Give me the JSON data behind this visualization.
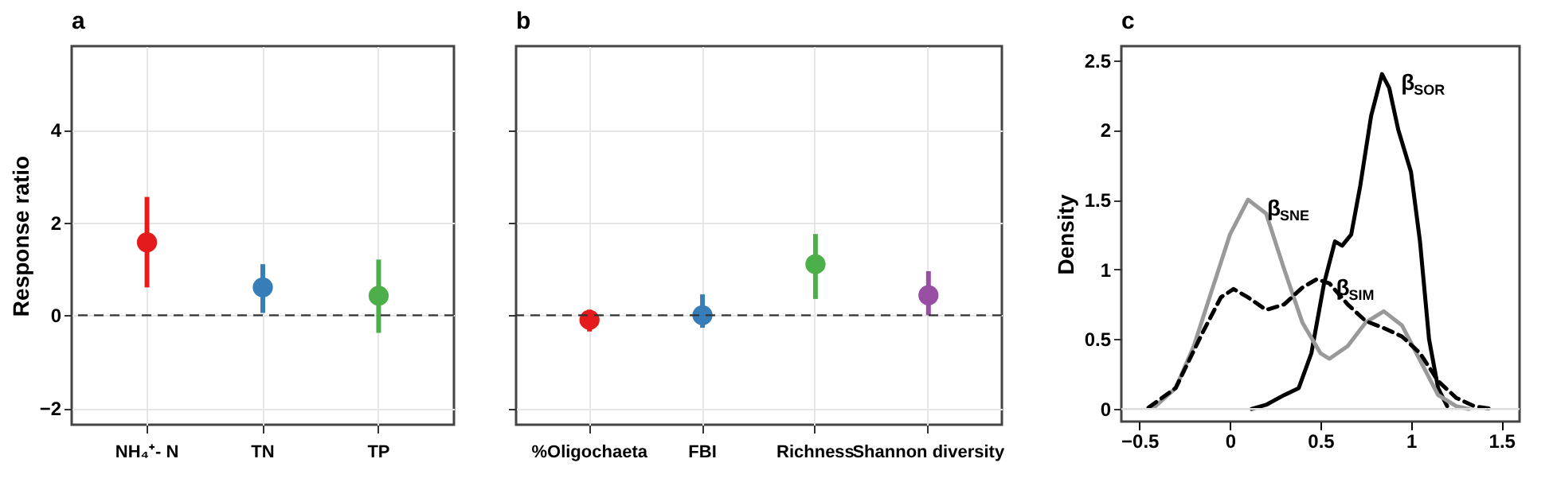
{
  "chart_data": [
    {
      "type": "scatter",
      "title": "a",
      "ylabel": "Response ratio",
      "categories": [
        "NH₄⁺- N",
        "TN",
        "TP"
      ],
      "values": [
        1.57,
        0.6,
        0.42
      ],
      "errors": [
        [
          0.6,
          2.55
        ],
        [
          0.05,
          1.1
        ],
        [
          -0.38,
          1.2
        ]
      ],
      "colors": [
        "#e41a1c",
        "#377eb8",
        "#4daf4a"
      ],
      "ylim": [
        -2.36,
        5.8
      ],
      "yticks": [
        -2,
        0,
        2,
        4
      ],
      "grid": true,
      "legend": false,
      "ref_lines": [
        {
          "axis": "y",
          "value": 0,
          "line_style": "dashed",
          "color": "#333333"
        }
      ]
    },
    {
      "type": "scatter",
      "title": "b",
      "categories": [
        "%Oligochaeta",
        "FBI",
        "Richness",
        "Shannon diversity"
      ],
      "values": [
        -0.1,
        0.0,
        1.1,
        0.43
      ],
      "errors": [
        [
          -0.35,
          0.12
        ],
        [
          -0.27,
          0.45
        ],
        [
          0.35,
          1.75
        ],
        [
          0.0,
          0.95
        ]
      ],
      "colors": [
        "#e41a1c",
        "#377eb8",
        "#4daf4a",
        "#984ea3"
      ],
      "ylim": [
        -2.36,
        5.8
      ],
      "yticks": [
        -2,
        0,
        2,
        4
      ],
      "tick_labels": "x",
      "grid": true,
      "legend": false,
      "ref_lines": [
        {
          "axis": "y",
          "value": 0,
          "line_style": "dashed",
          "color": "#333333"
        }
      ]
    },
    {
      "type": "line",
      "title": "c",
      "ylabel": "Density",
      "xlim": [
        -0.6,
        1.6
      ],
      "xticks": [
        -0.5,
        0,
        0.5,
        1,
        1.5
      ],
      "ylim": [
        -0.09,
        2.6
      ],
      "yticks": [
        0,
        0.5,
        1,
        1.5,
        2,
        2.5
      ],
      "grid": false,
      "series": [
        {
          "name": "β$_{SOR}$",
          "color": "#000000",
          "line_style": "solid",
          "x": [
            0.12,
            0.2,
            0.3,
            0.38,
            0.45,
            0.52,
            0.58,
            0.62,
            0.67,
            0.72,
            0.78,
            0.84,
            0.88,
            0.93,
            1.0,
            1.05,
            1.1,
            1.15,
            1.2
          ],
          "values": [
            0.0,
            0.03,
            0.1,
            0.15,
            0.4,
            0.9,
            1.2,
            1.17,
            1.25,
            1.6,
            2.1,
            2.4,
            2.3,
            2.0,
            1.7,
            1.2,
            0.5,
            0.15,
            0.02
          ]
        },
        {
          "name": "β$_{SNE}$",
          "color": "#999999",
          "line_style": "solid",
          "x": [
            -0.42,
            -0.3,
            -0.2,
            -0.1,
            0,
            0.1,
            0.2,
            0.3,
            0.4,
            0.5,
            0.55,
            0.65,
            0.75,
            0.85,
            0.95,
            1.05,
            1.15,
            1.25,
            1.32
          ],
          "values": [
            0.01,
            0.15,
            0.45,
            0.85,
            1.25,
            1.5,
            1.4,
            1.0,
            0.62,
            0.4,
            0.36,
            0.45,
            0.62,
            0.7,
            0.6,
            0.35,
            0.1,
            0.02,
            0.0
          ]
        },
        {
          "name": "β$_{SIM}$",
          "color": "#000000",
          "line_style": "dashed",
          "x": [
            -0.45,
            -0.3,
            -0.15,
            -0.05,
            0.02,
            0.1,
            0.2,
            0.3,
            0.4,
            0.48,
            0.55,
            0.65,
            0.75,
            0.85,
            0.95,
            1.05,
            1.15,
            1.25,
            1.35,
            1.45
          ],
          "values": [
            0.01,
            0.15,
            0.55,
            0.8,
            0.86,
            0.8,
            0.71,
            0.75,
            0.87,
            0.93,
            0.9,
            0.75,
            0.63,
            0.58,
            0.52,
            0.4,
            0.2,
            0.08,
            0.02,
            0.0
          ]
        }
      ],
      "ref_lines": [
        {
          "axis": "y",
          "value": 0,
          "color": "#dddddd",
          "line_style": "solid"
        }
      ]
    }
  ]
}
